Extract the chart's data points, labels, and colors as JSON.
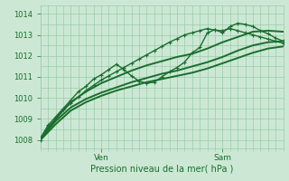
{
  "title": "Pression niveau de la mer( hPa )",
  "ylabel_ticks": [
    1008,
    1009,
    1010,
    1011,
    1012,
    1013,
    1014
  ],
  "ylim": [
    1007.6,
    1014.4
  ],
  "xlim": [
    0,
    96
  ],
  "ven_x": 24,
  "sam_x": 72,
  "bg_color": "#cce8d4",
  "grid_color": "#99ccaa",
  "line_color": "#1a6e2e",
  "tick_color": "#1a6e2e",
  "label_color": "#1a6e2e",
  "minor_x_step": 3,
  "series": [
    {
      "x": [
        0,
        3,
        6,
        9,
        12,
        15,
        18,
        21,
        24,
        27,
        30,
        33,
        36,
        39,
        42,
        45,
        48,
        51,
        54,
        57,
        60,
        63,
        66,
        69,
        72,
        75,
        78,
        81,
        84,
        87,
        90,
        93,
        96
      ],
      "y": [
        1008.0,
        1008.6,
        1009.0,
        1009.45,
        1009.75,
        1010.05,
        1010.35,
        1010.6,
        1010.85,
        1011.05,
        1011.25,
        1011.45,
        1011.65,
        1011.85,
        1012.05,
        1012.25,
        1012.45,
        1012.65,
        1012.82,
        1013.0,
        1013.1,
        1013.2,
        1013.3,
        1013.22,
        1013.2,
        1013.3,
        1013.2,
        1013.1,
        1013.0,
        1012.9,
        1012.8,
        1012.7,
        1012.6
      ],
      "marker": true,
      "lw": 1.0
    },
    {
      "x": [
        0,
        3,
        6,
        9,
        12,
        15,
        18,
        21,
        24,
        27,
        30,
        33,
        36,
        39,
        42,
        45,
        48,
        51,
        54,
        57,
        60,
        63,
        66,
        69,
        72,
        75,
        78,
        81,
        84,
        87,
        90,
        93,
        96
      ],
      "y": [
        1008.1,
        1008.7,
        1009.1,
        1009.5,
        1009.9,
        1010.3,
        1010.55,
        1010.9,
        1011.1,
        1011.35,
        1011.6,
        1011.35,
        1011.05,
        1010.8,
        1010.7,
        1010.75,
        1011.0,
        1011.25,
        1011.45,
        1011.7,
        1012.15,
        1012.4,
        1013.1,
        1013.25,
        1013.1,
        1013.4,
        1013.55,
        1013.5,
        1013.4,
        1013.2,
        1013.05,
        1012.85,
        1012.7
      ],
      "marker": true,
      "lw": 1.0
    },
    {
      "x": [
        0,
        6,
        12,
        18,
        24,
        30,
        36,
        42,
        48,
        54,
        60,
        66,
        72,
        78,
        84,
        90,
        96
      ],
      "y": [
        1008.05,
        1009.0,
        1009.8,
        1010.3,
        1010.7,
        1011.0,
        1011.3,
        1011.55,
        1011.75,
        1011.95,
        1012.1,
        1012.35,
        1012.65,
        1012.9,
        1013.15,
        1013.2,
        1013.15
      ],
      "marker": false,
      "lw": 1.4
    },
    {
      "x": [
        0,
        6,
        12,
        18,
        24,
        30,
        36,
        42,
        48,
        54,
        60,
        66,
        72,
        78,
        84,
        90,
        96
      ],
      "y": [
        1008.05,
        1008.9,
        1009.55,
        1009.95,
        1010.25,
        1010.5,
        1010.75,
        1010.95,
        1011.15,
        1011.3,
        1011.5,
        1011.7,
        1011.95,
        1012.25,
        1012.5,
        1012.65,
        1012.7
      ],
      "marker": false,
      "lw": 1.4
    },
    {
      "x": [
        0,
        6,
        12,
        18,
        24,
        30,
        36,
        42,
        48,
        54,
        60,
        66,
        72,
        78,
        84,
        90,
        96
      ],
      "y": [
        1008.0,
        1008.75,
        1009.4,
        1009.8,
        1010.1,
        1010.35,
        1010.55,
        1010.75,
        1010.9,
        1011.05,
        1011.2,
        1011.4,
        1011.65,
        1011.9,
        1012.15,
        1012.35,
        1012.45
      ],
      "marker": false,
      "lw": 1.4
    }
  ]
}
